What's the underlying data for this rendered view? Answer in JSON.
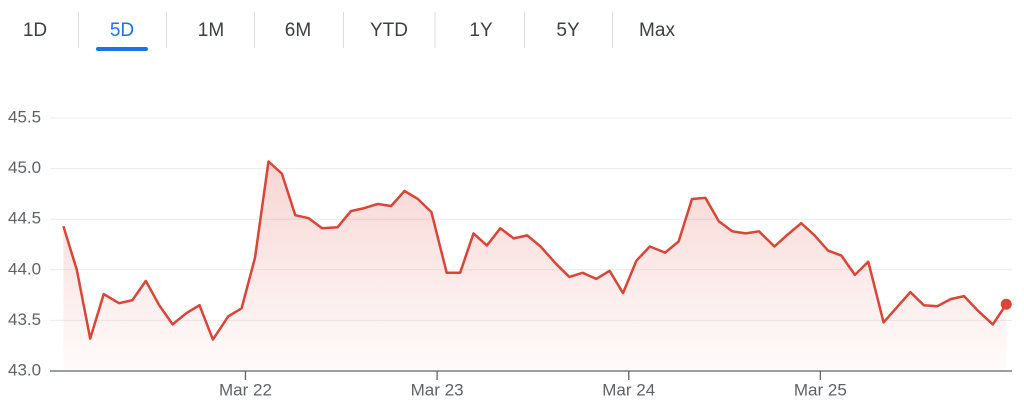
{
  "tabs": [
    "1D",
    "5D",
    "1M",
    "6M",
    "YTD",
    "1Y",
    "5Y",
    "Max"
  ],
  "selected_tab": 1,
  "chart_data": {
    "type": "line",
    "x": [
      21.05,
      21.12,
      21.19,
      21.26,
      21.34,
      21.41,
      21.48,
      21.55,
      21.62,
      21.69,
      21.76,
      21.83,
      21.91,
      21.98,
      22.05,
      22.12,
      22.19,
      22.26,
      22.33,
      22.4,
      22.48,
      22.55,
      22.62,
      22.69,
      22.76,
      22.83,
      22.9,
      22.97,
      23.05,
      23.12,
      23.19,
      23.26,
      23.33,
      23.4,
      23.47,
      23.54,
      23.62,
      23.69,
      23.76,
      23.83,
      23.9,
      23.97,
      24.04,
      24.11,
      24.19,
      24.26,
      24.33,
      24.4,
      24.47,
      24.54,
      24.61,
      24.68,
      24.76,
      24.83,
      24.9,
      24.97,
      25.04,
      25.11,
      25.18,
      25.25,
      25.33,
      25.4,
      25.47,
      25.54,
      25.61,
      25.68,
      25.75,
      25.82,
      25.9,
      25.97
    ],
    "series": [
      {
        "color": "#db4437",
        "values": [
          44.43,
          44.0,
          43.32,
          43.76,
          43.67,
          43.7,
          43.89,
          43.65,
          43.46,
          43.57,
          43.65,
          43.31,
          43.54,
          43.62,
          44.12,
          45.07,
          44.95,
          44.54,
          44.51,
          44.41,
          44.42,
          44.58,
          44.61,
          44.65,
          44.63,
          44.78,
          44.7,
          44.57,
          43.97,
          43.97,
          44.36,
          44.24,
          44.41,
          44.31,
          44.34,
          44.23,
          44.06,
          43.93,
          43.97,
          43.91,
          43.99,
          43.77,
          44.09,
          44.23,
          44.17,
          44.28,
          44.7,
          44.71,
          44.48,
          44.38,
          44.36,
          44.38,
          44.23,
          44.35,
          44.46,
          44.34,
          44.19,
          44.14,
          43.95,
          44.08,
          43.48,
          43.63,
          43.78,
          43.65,
          43.64,
          43.71,
          43.74,
          43.6,
          43.46,
          43.66
        ]
      }
    ],
    "xlim": [
      20.98,
      26.0
    ],
    "xticks": [
      {
        "value": 22,
        "label": "Mar 22"
      },
      {
        "value": 23,
        "label": "Mar 23"
      },
      {
        "value": 24,
        "label": "Mar 24"
      },
      {
        "value": 25,
        "label": "Mar 25"
      }
    ],
    "ylim": [
      43,
      45.5
    ],
    "yticks": [
      {
        "value": 43,
        "label": "43.0"
      },
      43.5,
      {
        "value": 44,
        "label": "44.0"
      },
      44.5,
      {
        "value": 45,
        "label": "45.0"
      },
      45.5
    ],
    "grid": true
  }
}
